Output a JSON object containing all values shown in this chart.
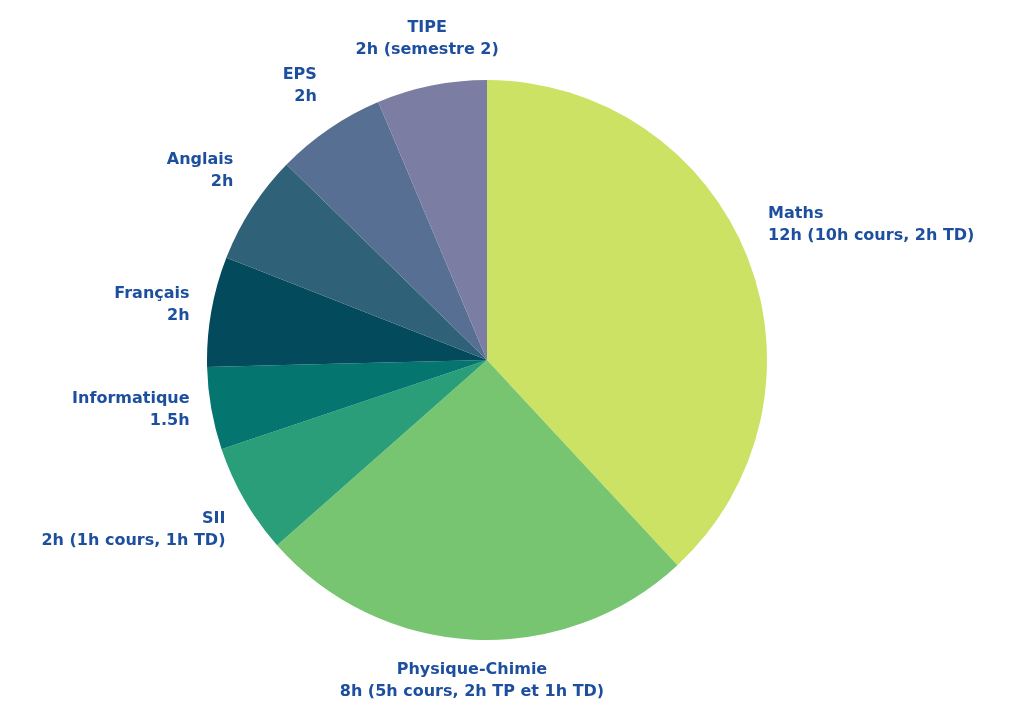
{
  "chart_data": {
    "type": "pie",
    "categories": [
      "Maths",
      "Physique-Chimie",
      "SII",
      "Informatique",
      "Français",
      "Anglais",
      "EPS",
      "TIPE"
    ],
    "values": [
      12,
      8,
      2,
      1.5,
      2,
      2,
      2,
      2
    ],
    "colors": [
      "#cbe265",
      "#77c570",
      "#2a9e78",
      "#04756f",
      "#034a5c",
      "#2f6178",
      "#566f92",
      "#7b7da3"
    ],
    "value_labels": [
      "12h (10h cours, 2h TD)",
      "8h (5h cours, 2h TP et 1h TD)",
      "2h (1h cours, 1h TD)",
      "1.5h",
      "2h",
      "2h",
      "2h",
      "2h (semestre 2)"
    ],
    "legend": false
  }
}
